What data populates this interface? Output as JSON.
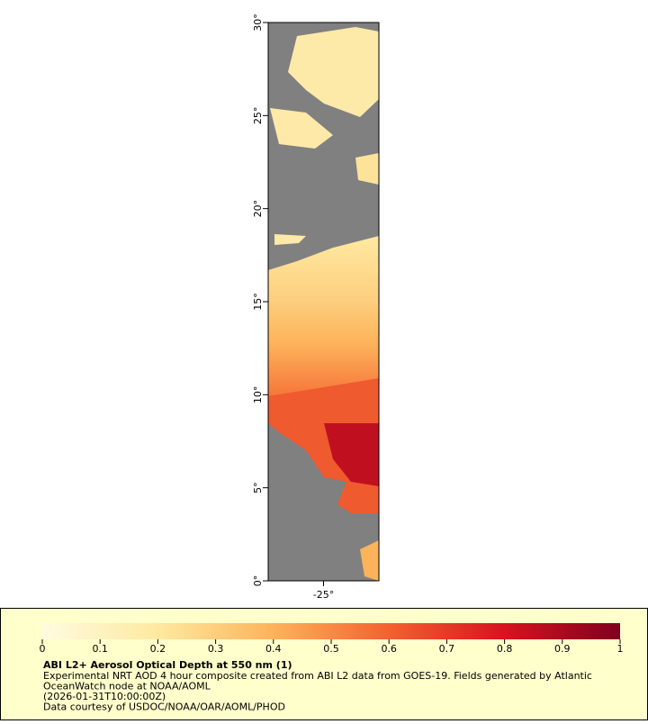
{
  "map": {
    "latlim": [
      0,
      30
    ],
    "lonlim": [
      -28,
      -22
    ],
    "lat_ticks": [
      {
        "value": 0,
        "label": "0°"
      },
      {
        "value": 5,
        "label": "5°"
      },
      {
        "value": 10,
        "label": "10°"
      },
      {
        "value": 15,
        "label": "15°"
      },
      {
        "value": 20,
        "label": "20°"
      },
      {
        "value": 25,
        "label": "25°"
      },
      {
        "value": 30,
        "label": "30°"
      }
    ],
    "lon_ticks": [
      {
        "value": -25,
        "label": "-25°"
      }
    ]
  },
  "legend": {
    "colorbar_lim": [
      0,
      1
    ],
    "colorbar_ticks": [
      0,
      0.1,
      0.2,
      0.3,
      0.4,
      0.5,
      0.6,
      0.7,
      0.8,
      0.9,
      1
    ],
    "title": "ABI L2+ Aerosol Optical Depth at 550 nm (1)",
    "lines": [
      "Experimental NRT AOD 4 hour composite created from ABI L2 data from GOES-19. Fields generated by Atlantic",
      "OceanWatch node at NOAA/AOML",
      "(2026-01-31T10:00:00Z)",
      "Data courtesy of USDOC/NOAA/OAR/AOML/PHOD"
    ]
  }
}
